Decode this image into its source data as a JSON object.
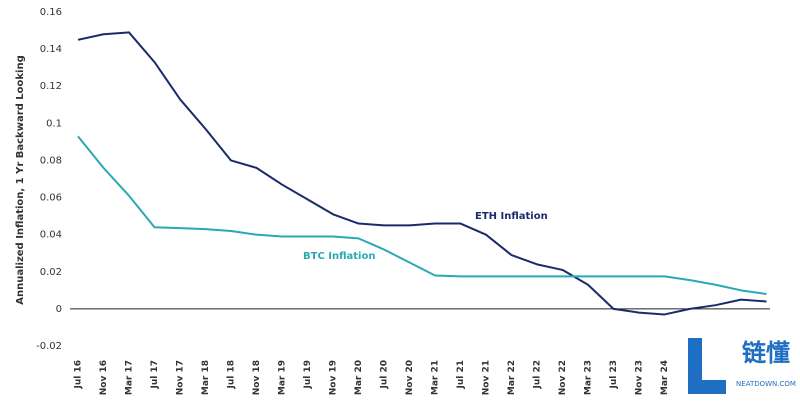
{
  "chart_data": {
    "type": "line",
    "y_label": "Annualized Inflation, 1 Yr Backward Looking",
    "categories": [
      "Jul 16",
      "Nov 16",
      "Mar 17",
      "Jul 17",
      "Nov 17",
      "Mar 18",
      "Jul 18",
      "Nov 18",
      "Mar 19",
      "Jul 19",
      "Nov 19",
      "Mar 20",
      "Jul 20",
      "Nov 20",
      "Mar 21",
      "Jul 21",
      "Nov 21",
      "Mar 22",
      "Jul 22",
      "Nov 22",
      "Mar 23",
      "Jul 23",
      "Nov 23",
      "Mar 24",
      null,
      null,
      null,
      null
    ],
    "series": [
      {
        "name": "ETH Inflation",
        "color": "#1b2a6b",
        "values": [
          0.145,
          0.148,
          0.149,
          0.133,
          0.113,
          0.097,
          0.08,
          0.076,
          0.067,
          0.059,
          0.051,
          0.046,
          0.045,
          0.045,
          0.046,
          0.046,
          0.04,
          0.029,
          0.024,
          0.021,
          0.013,
          0.0,
          -0.002,
          -0.003,
          0.0,
          0.002,
          0.005,
          0.004
        ]
      },
      {
        "name": "BTC Inflation",
        "color": "#2aa8b4",
        "values": [
          0.093,
          0.076,
          0.061,
          0.044,
          0.0435,
          0.043,
          0.042,
          0.04,
          0.039,
          0.039,
          0.039,
          0.038,
          0.032,
          0.025,
          0.018,
          0.0175,
          0.0175,
          0.0175,
          0.0175,
          0.0175,
          0.0175,
          0.0175,
          0.0175,
          0.0175,
          0.0155,
          0.013,
          0.01,
          0.008
        ]
      }
    ],
    "ylim": [
      -0.02,
      0.16
    ],
    "yticks": [
      -0.02,
      0,
      0.02,
      0.04,
      0.06,
      0.08,
      0.1,
      0.12,
      0.14,
      0.16
    ],
    "watermark": {
      "title": "链懂",
      "subtitle": "NEATDOWN.COM"
    }
  }
}
